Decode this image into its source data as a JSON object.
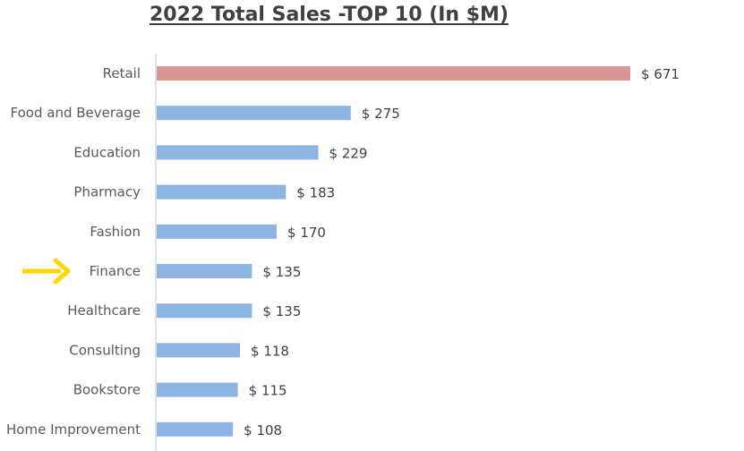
{
  "chart_data": {
    "type": "bar",
    "orientation": "horizontal",
    "title": "2022 Total Sales -TOP 10 (In $M)",
    "xlabel": "",
    "ylabel": "",
    "categories": [
      "Retail",
      "Food and Beverage",
      "Education",
      "Pharmacy",
      "Fashion",
      "Finance",
      "Healthcare",
      "Consulting",
      "Bookstore",
      "Home Improvement"
    ],
    "values": [
      671,
      275,
      229,
      183,
      170,
      135,
      135,
      118,
      115,
      108
    ],
    "value_labels": [
      "$ 671",
      "$ 275",
      "$ 229",
      "$ 183",
      "$ 170",
      "$ 135",
      "$ 135",
      "$ 118",
      "$ 115",
      "$ 108"
    ],
    "xlim": [
      0,
      671
    ],
    "grid": false,
    "legend": "none",
    "colors": {
      "default_bar": "#8eb4e3",
      "highlight_bar": "#da9694",
      "axis_line": "#d9d9d9",
      "arrow": "#ffd700"
    },
    "highlighted_categories": [
      "Retail"
    ],
    "arrow_marker_category": "Finance"
  }
}
